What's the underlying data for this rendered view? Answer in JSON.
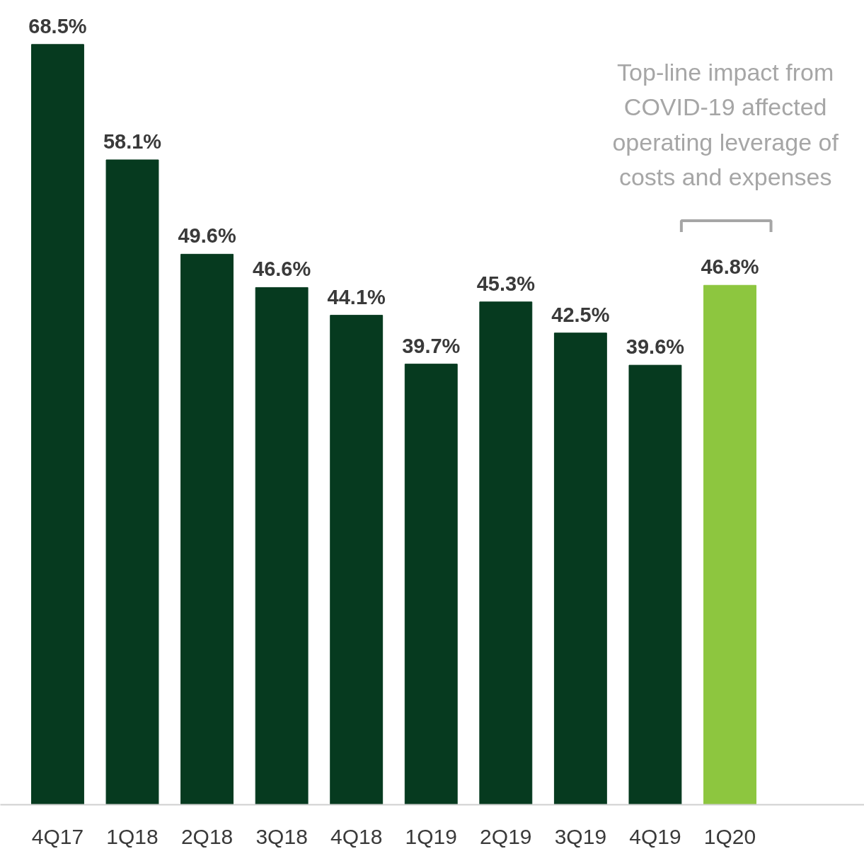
{
  "chart_data": {
    "type": "bar",
    "categories": [
      "4Q17",
      "1Q18",
      "2Q18",
      "3Q18",
      "4Q18",
      "1Q19",
      "2Q19",
      "3Q19",
      "4Q19",
      "1Q20"
    ],
    "values": [
      68.5,
      58.1,
      49.6,
      46.6,
      44.1,
      39.7,
      45.3,
      42.5,
      39.6,
      46.8
    ],
    "colors": [
      "#063a1f",
      "#063a1f",
      "#063a1f",
      "#063a1f",
      "#063a1f",
      "#063a1f",
      "#063a1f",
      "#063a1f",
      "#063a1f",
      "#8dc63f"
    ],
    "value_labels": [
      "68.5%",
      "58.1%",
      "49.6%",
      "46.6%",
      "44.1%",
      "39.7%",
      "45.3%",
      "42.5%",
      "39.6%",
      "46.8%"
    ],
    "annotations": [
      "Top-line impact from\nCOVID-19 affected\noperating leverage of\ncosts and expenses"
    ]
  }
}
